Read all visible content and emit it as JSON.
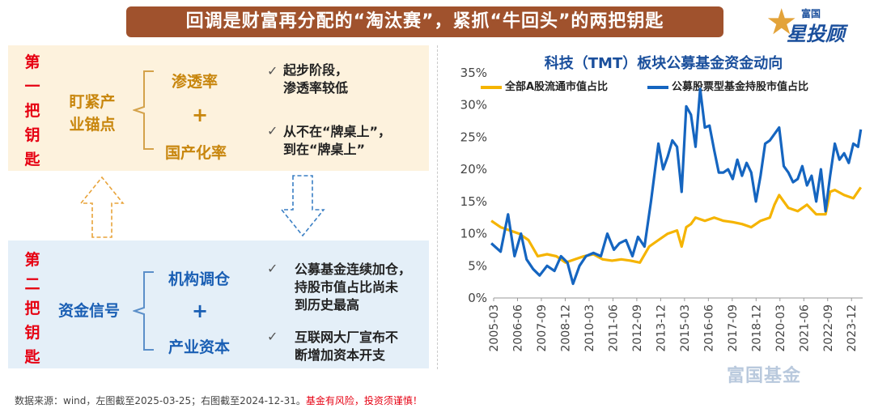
{
  "header": {
    "title": "回调是财富再分配的“淘汰赛”，紧抓“牛回头”的两把钥匙",
    "logo_top": "富国",
    "logo_main": "星投顾",
    "logo_icon": "star-icon",
    "brand_color": "#1a4f9c",
    "title_bg": "#a0522d"
  },
  "key1": {
    "label_chars": [
      "第",
      "一",
      "把",
      "钥",
      "匙"
    ],
    "anchor_lines": [
      "盯紧产",
      "业锚点"
    ],
    "item1": "渗透率",
    "plus": "+",
    "item2": "国产化率",
    "note1_lines": [
      "起步阶段，",
      "渗透率较低"
    ],
    "note2_lines": [
      "从不在“牌桌上”，",
      "到在“牌桌上”"
    ],
    "check": "✓",
    "color": "#c8860d",
    "bg": "#fdf2dd"
  },
  "key2": {
    "label_chars": [
      "第",
      "二",
      "把",
      "钥",
      "匙"
    ],
    "anchor": "资金信号",
    "item1": "机构调仓",
    "plus": "+",
    "item2": "产业资本",
    "note1_lines": [
      "公募基金连续加仓，",
      "持股市值占比尚未",
      "到历史最高"
    ],
    "note2_lines": [
      "互联网大厂宣布不",
      "断增加资本开支"
    ],
    "check": "✓",
    "color": "#1a5fb4",
    "bg": "#e4eff8"
  },
  "source": {
    "text": "数据来源：wind，左图截至2025-03-25；右图截至2024-12-31。",
    "warning": "基金有风险，投资须谨慎！"
  },
  "watermark": "富国基金",
  "chart_data": {
    "type": "line",
    "title": "科技（TMT）板块公募基金资金动向",
    "x_tick_labels": [
      "2005-03",
      "2006-06",
      "2007-09",
      "2008-12",
      "2010-03",
      "2011-06",
      "2012-09",
      "2013-12",
      "2015-03",
      "2016-06",
      "2017-09",
      "2018-12",
      "2020-03",
      "2021-06",
      "2022-09",
      "2023-12"
    ],
    "x_range": [
      2005.125,
      2025.0
    ],
    "ylim": [
      0,
      35
    ],
    "y_ticks": [
      0,
      5,
      10,
      15,
      20,
      25,
      30,
      35
    ],
    "y_tick_labels": [
      "0%",
      "5%",
      "10%",
      "15%",
      "20%",
      "25%",
      "30%",
      "35%"
    ],
    "grid": false,
    "legend_position": "top",
    "series": [
      {
        "name": "全部A股流通市值占比",
        "color": "#f5b400",
        "x": [
          2005.0,
          2005.5,
          2006.0,
          2006.5,
          2007.0,
          2007.5,
          2008.0,
          2008.5,
          2009.0,
          2009.5,
          2010.0,
          2010.5,
          2011.0,
          2011.5,
          2012.0,
          2012.5,
          2013.0,
          2013.5,
          2014.0,
          2014.5,
          2015.0,
          2015.25,
          2015.5,
          2015.75,
          2016.0,
          2016.5,
          2017.0,
          2017.5,
          2018.0,
          2018.5,
          2019.0,
          2019.5,
          2020.0,
          2020.25,
          2020.5,
          2020.75,
          2021.0,
          2021.5,
          2022.0,
          2022.5,
          2023.0,
          2023.25,
          2023.5,
          2024.0,
          2024.5,
          2024.9
        ],
        "values": [
          12.0,
          11.0,
          10.5,
          10.0,
          9.0,
          6.5,
          6.8,
          6.5,
          5.5,
          6.0,
          6.5,
          6.8,
          6.0,
          5.8,
          6.0,
          5.8,
          5.5,
          8.0,
          9.0,
          10.0,
          10.5,
          8.0,
          11.0,
          11.5,
          12.5,
          12.0,
          12.5,
          12.0,
          11.8,
          11.5,
          11.0,
          12.0,
          12.5,
          14.5,
          16.0,
          15.0,
          14.0,
          13.5,
          14.5,
          13.0,
          13.0,
          16.5,
          16.8,
          16.0,
          15.5,
          17.2
        ]
      },
      {
        "name": "公募股票型基金持股市值占比",
        "color": "#1565c0",
        "x": [
          2005.0,
          2005.5,
          2005.9,
          2006.25,
          2006.6,
          2006.9,
          2007.25,
          2007.6,
          2008.0,
          2008.4,
          2008.75,
          2009.1,
          2009.4,
          2009.75,
          2010.1,
          2010.5,
          2010.9,
          2011.25,
          2011.6,
          2011.9,
          2012.25,
          2012.6,
          2012.9,
          2013.25,
          2013.6,
          2014.0,
          2014.25,
          2014.5,
          2014.75,
          2015.0,
          2015.25,
          2015.5,
          2015.75,
          2016.0,
          2016.25,
          2016.5,
          2016.75,
          2017.0,
          2017.25,
          2017.5,
          2017.75,
          2018.0,
          2018.25,
          2018.5,
          2018.75,
          2019.0,
          2019.25,
          2019.5,
          2019.75,
          2020.0,
          2020.25,
          2020.5,
          2020.75,
          2021.0,
          2021.25,
          2021.5,
          2021.75,
          2022.0,
          2022.25,
          2022.5,
          2022.75,
          2023.0,
          2023.25,
          2023.5,
          2023.75,
          2024.0,
          2024.25,
          2024.5,
          2024.75,
          2024.9
        ],
        "values": [
          8.5,
          7.2,
          13.0,
          6.5,
          10.0,
          6.0,
          4.5,
          3.5,
          5.0,
          4.2,
          6.5,
          5.5,
          2.2,
          5.0,
          6.5,
          7.0,
          6.5,
          10.0,
          7.5,
          8.5,
          9.0,
          6.5,
          9.5,
          8.0,
          15.0,
          24.0,
          20.0,
          22.0,
          24.5,
          23.5,
          16.5,
          29.8,
          28.5,
          23.5,
          32.5,
          26.5,
          26.8,
          23.0,
          19.5,
          19.5,
          20.0,
          18.5,
          21.5,
          19.0,
          21.0,
          19.5,
          15.0,
          19.0,
          24.0,
          24.5,
          25.5,
          26.5,
          20.5,
          19.5,
          18.0,
          18.5,
          20.5,
          17.5,
          19.0,
          15.0,
          20.0,
          13.5,
          19.0,
          24.0,
          21.5,
          22.5,
          21.0,
          24.0,
          23.5,
          26.2
        ]
      }
    ]
  }
}
